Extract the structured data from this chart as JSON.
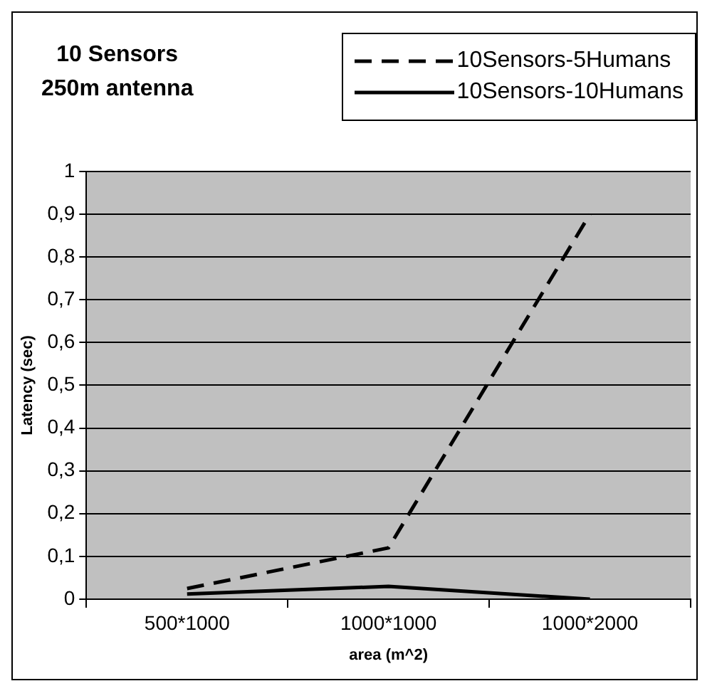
{
  "chart_data": {
    "type": "line",
    "title": "10 Sensors\n250m antenna",
    "xlabel": "area (m^2)",
    "ylabel": "Latency (sec)",
    "categories": [
      "500*1000",
      "1000*1000",
      "1000*2000"
    ],
    "series": [
      {
        "name": "10Sensors-5Humans",
        "color": "#000000",
        "line_style": "dashed",
        "values": [
          0.025,
          0.12,
          0.9
        ]
      },
      {
        "name": "10Sensors-10Humans",
        "color": "#000000",
        "line_style": "solid",
        "values": [
          0.012,
          0.03,
          0.0
        ]
      }
    ],
    "ylim": [
      0,
      1
    ],
    "yticks": [
      0,
      {
        "value": 0.1,
        "label": "0,1"
      },
      {
        "value": 0.2,
        "label": "0,2"
      },
      {
        "value": 0.3,
        "label": "0,3"
      },
      {
        "value": 0.4,
        "label": "0,4"
      },
      {
        "value": 0.5,
        "label": "0,5"
      },
      {
        "value": 0.6,
        "label": "0,6"
      },
      {
        "value": 0.7,
        "label": "0,7"
      },
      {
        "value": 0.8,
        "label": "0,8"
      },
      {
        "value": 0.9,
        "label": "0,9"
      },
      1
    ],
    "grid": "y",
    "legend": "top right",
    "marker": "none"
  }
}
